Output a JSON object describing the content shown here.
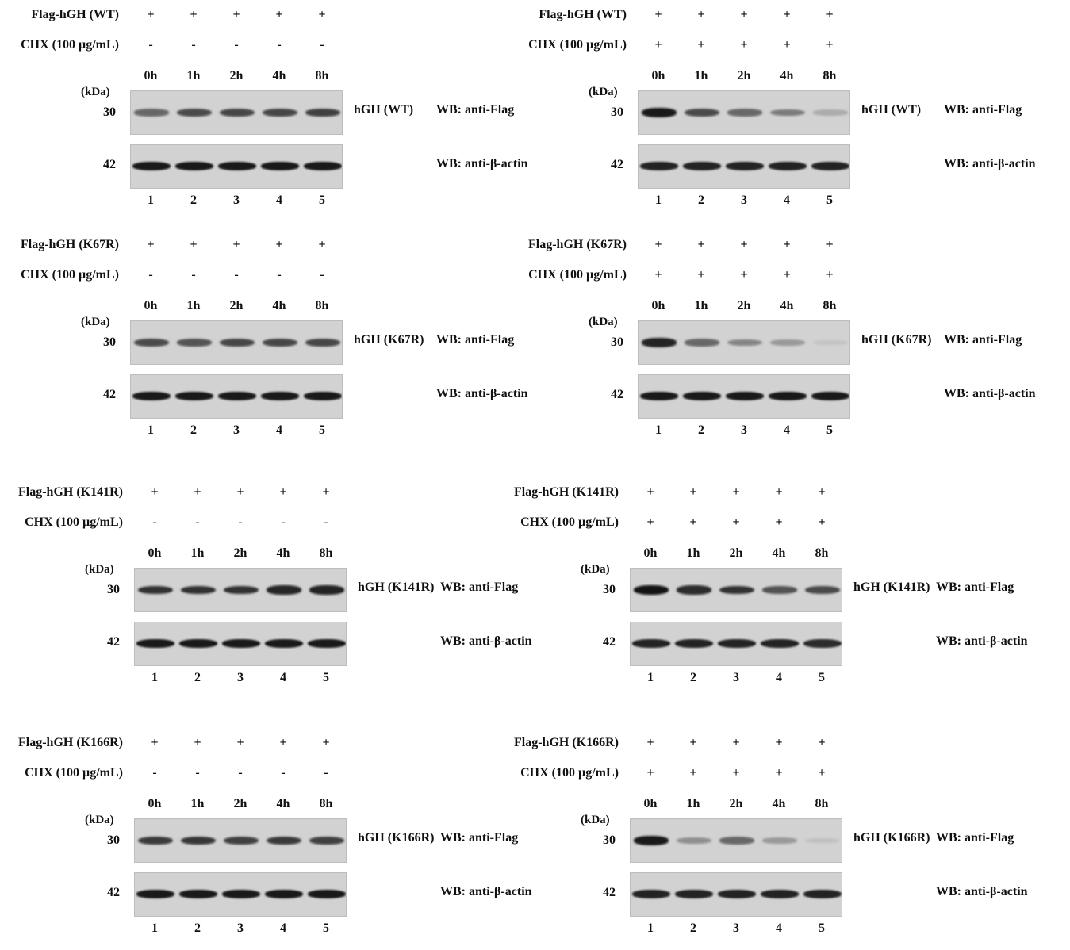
{
  "common": {
    "cond_cols": [
      "+",
      "+",
      "+",
      "+",
      "+"
    ],
    "times": [
      "0h",
      "1h",
      "2h",
      "4h",
      "8h"
    ],
    "lanes": [
      "1",
      "2",
      "3",
      "4",
      "5"
    ],
    "kda_label": "(kDa)",
    "mw_flag": "30",
    "mw_actin": "42",
    "wb_flag": "WB: anti-Flag",
    "wb_actin": "WB: anti-β-actin",
    "cond2_label": "CHX (100 µg/mL)"
  },
  "panels": [
    {
      "id": "wt-minus",
      "flag_label": "Flag-hGH (WT)",
      "cond2": [
        "-",
        "-",
        "-",
        "-",
        "-"
      ],
      "protein": "hGH (WT)",
      "flag_intensity": [
        0.55,
        0.7,
        0.72,
        0.72,
        0.75
      ],
      "actin_intensity": [
        0.95,
        0.95,
        0.95,
        0.95,
        0.95
      ]
    },
    {
      "id": "wt-plus",
      "flag_label": "Flag-hGH (WT)",
      "cond2": [
        "+",
        "+",
        "+",
        "+",
        "+"
      ],
      "protein": "hGH (WT)",
      "flag_intensity": [
        0.95,
        0.7,
        0.55,
        0.45,
        0.2
      ],
      "actin_intensity": [
        0.9,
        0.9,
        0.9,
        0.9,
        0.9
      ]
    },
    {
      "id": "k67r-minus",
      "flag_label": "Flag-hGH (K67R)",
      "cond2": [
        "-",
        "-",
        "-",
        "-",
        "-"
      ],
      "protein": "hGH (K67R)",
      "flag_intensity": [
        0.7,
        0.65,
        0.72,
        0.72,
        0.72
      ],
      "actin_intensity": [
        0.95,
        0.95,
        0.95,
        0.95,
        0.95
      ]
    },
    {
      "id": "k67r-plus",
      "flag_label": "Flag-hGH (K67R)",
      "cond2": [
        "+",
        "+",
        "+",
        "+",
        "+"
      ],
      "protein": "hGH (K67R)",
      "flag_intensity": [
        0.9,
        0.55,
        0.4,
        0.3,
        0.08
      ],
      "actin_intensity": [
        0.95,
        0.95,
        0.95,
        0.95,
        0.95
      ]
    },
    {
      "id": "k141r-minus",
      "flag_label": "Flag-hGH (K141R)",
      "cond2": [
        "-",
        "-",
        "-",
        "-",
        "-"
      ],
      "protein": "hGH (K141R)",
      "flag_intensity": [
        0.82,
        0.82,
        0.82,
        0.88,
        0.9
      ],
      "actin_intensity": [
        0.95,
        0.95,
        0.95,
        0.95,
        0.95
      ]
    },
    {
      "id": "k141r-plus",
      "flag_label": "Flag-hGH (K141R)",
      "cond2": [
        "+",
        "+",
        "+",
        "+",
        "+"
      ],
      "protein": "hGH (K141R)",
      "flag_intensity": [
        0.98,
        0.85,
        0.82,
        0.65,
        0.7
      ],
      "actin_intensity": [
        0.9,
        0.9,
        0.9,
        0.9,
        0.85
      ]
    },
    {
      "id": "k166r-minus",
      "flag_label": "Flag-hGH (K166R)",
      "cond2": [
        "-",
        "-",
        "-",
        "-",
        "-"
      ],
      "protein": "hGH (K166R)",
      "flag_intensity": [
        0.78,
        0.8,
        0.75,
        0.78,
        0.75
      ],
      "actin_intensity": [
        0.95,
        0.95,
        0.95,
        0.95,
        0.95
      ]
    },
    {
      "id": "k166r-plus",
      "flag_label": "Flag-hGH (K166R)",
      "cond2": [
        "+",
        "+",
        "+",
        "+",
        "+"
      ],
      "protein": "hGH (K166R)",
      "flag_intensity": [
        0.95,
        0.35,
        0.55,
        0.3,
        0.1
      ],
      "actin_intensity": [
        0.9,
        0.9,
        0.9,
        0.9,
        0.9
      ]
    }
  ]
}
